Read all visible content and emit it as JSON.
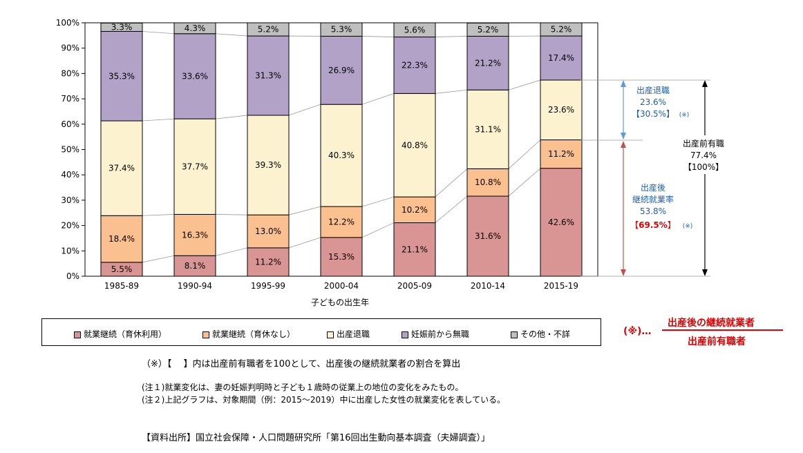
{
  "chart_data": {
    "type": "bar",
    "stacked": true,
    "categories": [
      "1985-89",
      "1990-94",
      "1995-99",
      "2000-04",
      "2005-09",
      "2010-14",
      "2015-19"
    ],
    "series": [
      {
        "name": "就業継続（育休利用）",
        "color": "#d99594",
        "values": [
          5.5,
          8.1,
          11.2,
          15.3,
          21.1,
          31.6,
          42.6
        ]
      },
      {
        "name": "就業継続（育休なし）",
        "color": "#fac090",
        "values": [
          18.4,
          16.3,
          13.0,
          12.2,
          10.2,
          10.8,
          11.2
        ]
      },
      {
        "name": "出産退職",
        "color": "#fdf2d0",
        "values": [
          37.4,
          37.7,
          39.3,
          40.3,
          40.8,
          31.1,
          23.6
        ]
      },
      {
        "name": "妊娠前から無職",
        "color": "#b3a2c7",
        "values": [
          35.3,
          33.6,
          31.3,
          26.9,
          22.3,
          21.2,
          17.4
        ]
      },
      {
        "name": "その他・不詳",
        "color": "#bfbfbf",
        "values": [
          3.3,
          4.3,
          5.2,
          5.3,
          5.6,
          5.2,
          5.2
        ]
      }
    ],
    "value_labels": [
      [
        "5.5%",
        "8.1%",
        "11.2%",
        "15.3%",
        "21.1%",
        "31.6%",
        "42.6%"
      ],
      [
        "18.4%",
        "16.3%",
        "13.0%",
        "12.2%",
        "10.2%",
        "10.8%",
        "11.2%"
      ],
      [
        "37.4%",
        "37.7%",
        "39.3%",
        "40.3%",
        "40.8%",
        "31.1%",
        "23.6%"
      ],
      [
        "35.3%",
        "33.6%",
        "31.3%",
        "26.9%",
        "22.3%",
        "21.2%",
        "17.4%"
      ],
      [
        "3.3%",
        "4.3%",
        "5.2%",
        "5.3%",
        "5.6%",
        "5.2%",
        "5.2%"
      ]
    ],
    "yticks": [
      "0%",
      "10%",
      "20%",
      "30%",
      "40%",
      "50%",
      "60%",
      "70%",
      "80%",
      "90%",
      "100%"
    ],
    "ylim": [
      0,
      100
    ],
    "xlabel": "子どもの出生年",
    "ylabel": "",
    "title": "",
    "grid": false,
    "legend_position": "bottom"
  },
  "annotations": {
    "taishoku": {
      "line1": "出産退職",
      "line2": "23.6%",
      "line3": "【30.5%】",
      "mark": "(※)"
    },
    "keizoku": {
      "line1": "出産後",
      "line2": "継続就業率",
      "line3": "53.8%",
      "line4_open": "【",
      "line4_value": "69.5%",
      "line4_close": "】",
      "mark": "(※)"
    },
    "yushoku": {
      "line1": "出産前有職",
      "line2": "77.4%",
      "line3": "【100%】"
    }
  },
  "formula": {
    "prefix": "(※)…",
    "numerator": "出産後の継続就業者",
    "denominator": "出産前有職者"
  },
  "colors": {
    "blue_arrow": "#5b9bd5",
    "red_arrow": "#c0504d",
    "blue_text": "#1f5fa8",
    "red_text": "#e00000"
  },
  "notes": {
    "n1": "（※）【　 】内は出産前有職者を100として、出産後の継続就業者の割合を算出",
    "n2": "(注１)就業変化は、妻の妊娠判明時と子ども１歳時の従業上の地位の変化をみたもの。",
    "n3": "(注２)上記グラフは、対象期間（例：2015～2019）中に出産した女性の就業変化を表している。",
    "source": "【資料出所】国立社会保障・人口問題研究所「第16回出生動向基本調査（夫婦調査）」"
  }
}
